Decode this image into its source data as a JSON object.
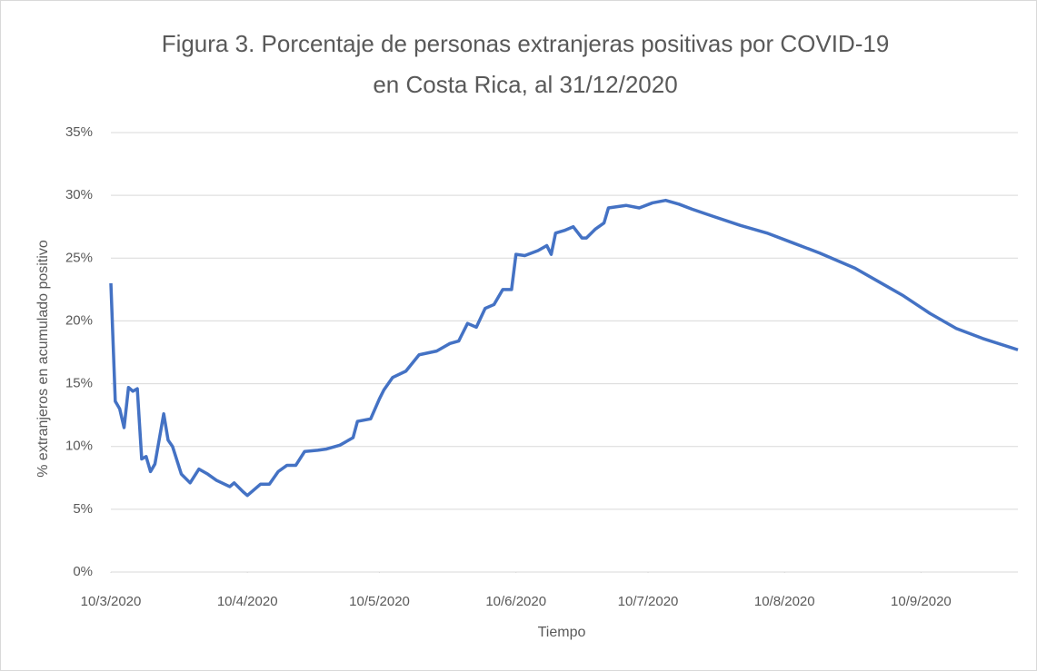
{
  "chart_data": {
    "type": "line",
    "title": [
      "Figura 3. Porcentaje de personas extranjeras positivas por COVID-19",
      "en Costa Rica, al 31/12/2020"
    ],
    "xlabel": "Tiempo",
    "ylabel": "% extranjeros en acumulado positivo",
    "x": [
      "2020-03-10",
      "2020-03-11",
      "2020-03-12",
      "2020-03-13",
      "2020-03-14",
      "2020-03-15",
      "2020-03-16",
      "2020-03-17",
      "2020-03-18",
      "2020-03-19",
      "2020-03-20",
      "2020-03-22",
      "2020-03-23",
      "2020-03-24",
      "2020-03-26",
      "2020-03-28",
      "2020-03-30",
      "2020-04-01",
      "2020-04-03",
      "2020-04-06",
      "2020-04-07",
      "2020-04-09",
      "2020-04-10",
      "2020-04-13",
      "2020-04-15",
      "2020-04-17",
      "2020-04-19",
      "2020-04-21",
      "2020-04-23",
      "2020-04-26",
      "2020-04-28",
      "2020-05-01",
      "2020-05-04",
      "2020-05-05",
      "2020-05-08",
      "2020-05-10",
      "2020-05-11",
      "2020-05-13",
      "2020-05-16",
      "2020-05-19",
      "2020-05-23",
      "2020-05-26",
      "2020-05-28",
      "2020-05-30",
      "2020-06-01",
      "2020-06-03",
      "2020-06-05",
      "2020-06-07",
      "2020-06-09",
      "2020-06-10",
      "2020-06-12",
      "2020-06-15",
      "2020-06-17",
      "2020-06-18",
      "2020-06-19",
      "2020-06-21",
      "2020-06-23",
      "2020-06-25",
      "2020-06-26",
      "2020-06-28",
      "2020-06-30",
      "2020-07-01",
      "2020-07-03",
      "2020-07-05",
      "2020-07-08",
      "2020-07-11",
      "2020-07-14",
      "2020-07-17",
      "2020-07-20",
      "2020-07-25",
      "2020-07-31",
      "2020-08-06",
      "2020-08-12",
      "2020-08-18",
      "2020-08-26",
      "2020-09-01",
      "2020-09-06",
      "2020-09-12",
      "2020-09-18",
      "2020-09-24",
      "2020-10-02"
    ],
    "series": [
      {
        "name": "% extranjeros",
        "color": "#4472c4",
        "values": [
          23.0,
          13.6,
          13.0,
          11.5,
          14.7,
          14.4,
          14.6,
          9.0,
          9.2,
          8.0,
          8.6,
          12.6,
          10.5,
          10.0,
          7.8,
          7.1,
          8.2,
          7.8,
          7.3,
          6.8,
          7.1,
          6.4,
          6.1,
          7.0,
          7.0,
          8.0,
          8.5,
          8.5,
          9.6,
          9.7,
          9.8,
          10.1,
          10.7,
          12.0,
          12.2,
          13.8,
          14.5,
          15.5,
          16.0,
          17.3,
          17.6,
          18.2,
          18.4,
          19.8,
          19.5,
          21.0,
          21.3,
          22.5,
          22.5,
          25.3,
          25.2,
          25.6,
          26.0,
          25.3,
          27.0,
          27.2,
          27.5,
          26.6,
          26.6,
          27.3,
          27.8,
          29.0,
          29.1,
          29.2,
          29.0,
          29.4,
          29.6,
          29.3,
          28.9,
          28.3,
          27.6,
          27.0,
          26.2,
          25.4,
          24.2,
          23.0,
          22.0,
          20.6,
          19.4,
          18.6,
          17.7
        ]
      }
    ],
    "xlim": [
      "2020-03-10",
      "2020-10-02"
    ],
    "xticks": [
      {
        "value": "2020-03-10",
        "label": "10/3/2020"
      },
      {
        "value": "2020-04-10",
        "label": "10/4/2020"
      },
      {
        "value": "2020-05-10",
        "label": "10/5/2020"
      },
      {
        "value": "2020-06-10",
        "label": "10/6/2020"
      },
      {
        "value": "2020-07-10",
        "label": "10/7/2020"
      },
      {
        "value": "2020-08-10",
        "label": "10/8/2020"
      },
      {
        "value": "2020-09-10",
        "label": "10/9/2020"
      }
    ],
    "ylim": [
      0,
      35
    ],
    "yticks": [
      {
        "value": 0,
        "label": "0%"
      },
      {
        "value": 5,
        "label": "5%"
      },
      {
        "value": 10,
        "label": "10%"
      },
      {
        "value": 15,
        "label": "15%"
      },
      {
        "value": 20,
        "label": "20%"
      },
      {
        "value": 25,
        "label": "25%"
      },
      {
        "value": 30,
        "label": "30%"
      },
      {
        "value": 35,
        "label": "35%"
      }
    ],
    "grid": true
  }
}
